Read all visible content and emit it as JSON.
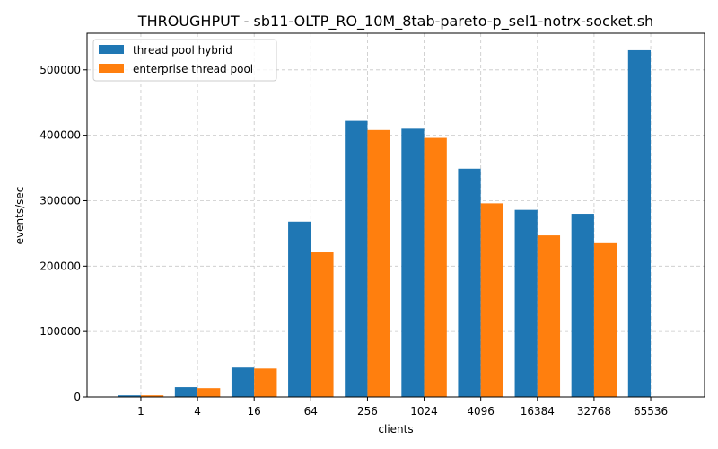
{
  "chart_data": {
    "type": "bar",
    "title": "THROUGHPUT - sb11-OLTP_RO_10M_8tab-pareto-p_sel1-notrx-socket.sh",
    "xlabel": "clients",
    "ylabel": "events/sec",
    "categories": [
      "1",
      "4",
      "16",
      "64",
      "256",
      "1024",
      "4096",
      "16384",
      "32768",
      "65536"
    ],
    "series": [
      {
        "name": "thread pool hybrid",
        "color": "#1f77b4",
        "values": [
          2500,
          15000,
          45000,
          268000,
          422000,
          410000,
          349000,
          286000,
          280000,
          530000
        ]
      },
      {
        "name": "enterprise thread pool",
        "color": "#ff7f0e",
        "values": [
          2500,
          13500,
          43500,
          221000,
          408000,
          396000,
          296000,
          247000,
          235000,
          0
        ]
      }
    ],
    "ylim": [
      0,
      556000
    ],
    "yticks": [
      0,
      100000,
      200000,
      300000,
      400000,
      500000
    ],
    "grid": true,
    "legend": "top-left"
  }
}
